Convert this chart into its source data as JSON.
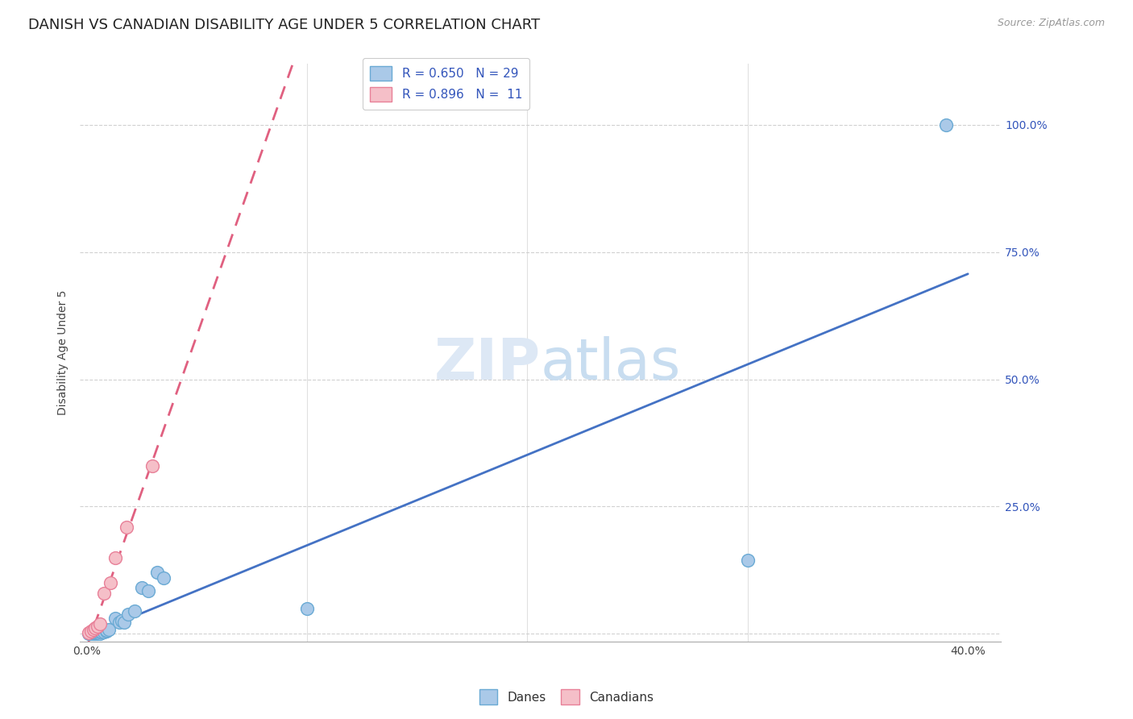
{
  "title": "DANISH VS CANADIAN DISABILITY AGE UNDER 5 CORRELATION CHART",
  "source": "Source: ZipAtlas.com",
  "ylabel": "Disability Age Under 5",
  "xlim": [
    -0.003,
    0.415
  ],
  "ylim": [
    -0.015,
    1.12
  ],
  "danes_x": [
    0.001,
    0.002,
    0.002,
    0.003,
    0.003,
    0.004,
    0.004,
    0.005,
    0.005,
    0.006,
    0.006,
    0.007,
    0.008,
    0.009,
    0.009,
    0.01,
    0.013,
    0.015,
    0.016,
    0.017,
    0.019,
    0.022,
    0.025,
    0.028,
    0.032,
    0.035,
    0.1,
    0.3,
    0.39
  ],
  "danes_y": [
    0.001,
    0.001,
    0.002,
    0.001,
    0.002,
    0.001,
    0.002,
    0.001,
    0.002,
    0.001,
    0.003,
    0.004,
    0.004,
    0.005,
    0.006,
    0.009,
    0.03,
    0.022,
    0.025,
    0.022,
    0.038,
    0.045,
    0.09,
    0.085,
    0.12,
    0.11,
    0.05,
    0.145,
    1.0
  ],
  "canadians_x": [
    0.001,
    0.002,
    0.003,
    0.004,
    0.005,
    0.006,
    0.008,
    0.011,
    0.013,
    0.018,
    0.03
  ],
  "canadians_y": [
    0.002,
    0.005,
    0.008,
    0.012,
    0.015,
    0.02,
    0.08,
    0.1,
    0.15,
    0.21,
    0.33
  ],
  "danes_color": "#aac9e8",
  "danes_edge_color": "#6aaad4",
  "canadians_color": "#f5bfc8",
  "canadians_edge_color": "#e88098",
  "line_danes_color": "#4472c4",
  "line_canadians_color": "#e06080",
  "r_danes": 0.65,
  "n_danes": 29,
  "r_canadians": 0.896,
  "n_canadians": 11,
  "legend_text_color": "#3355bb",
  "grid_color": "#cccccc",
  "title_fontsize": 13,
  "axis_label_fontsize": 10,
  "tick_fontsize": 10,
  "background_color": "#ffffff",
  "watermark_color": "#dde8f5",
  "watermark_text": "ZIPatlas"
}
